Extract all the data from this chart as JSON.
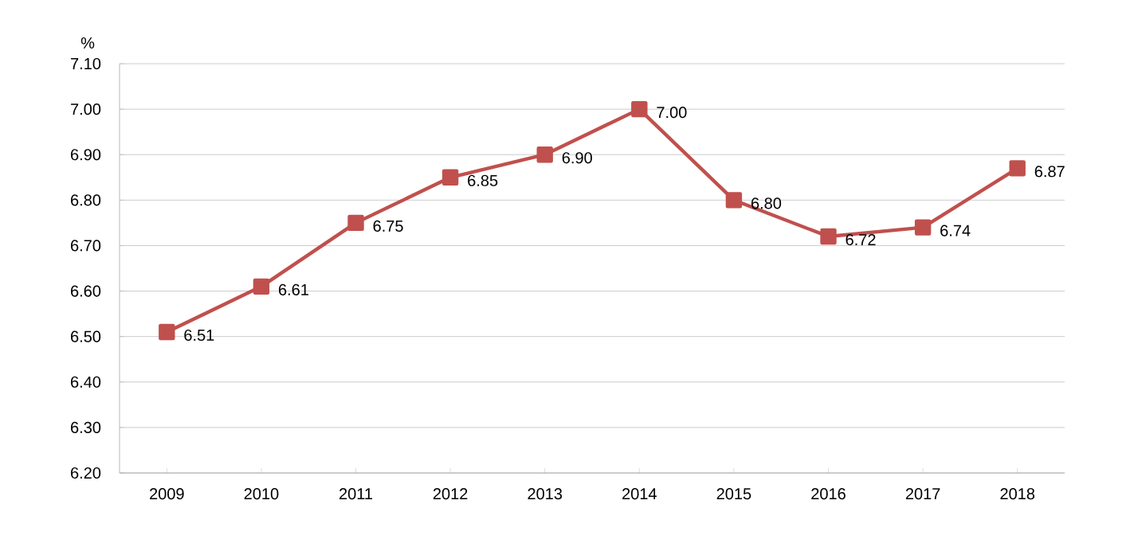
{
  "chart_data": {
    "type": "line",
    "ylabel": "%",
    "categories": [
      "2009",
      "2010",
      "2011",
      "2012",
      "2013",
      "2014",
      "2015",
      "2016",
      "2017",
      "2018"
    ],
    "series": [
      {
        "color": "#c0504d",
        "values": [
          6.51,
          6.61,
          6.75,
          6.85,
          6.9,
          7.0,
          6.8,
          6.72,
          6.74,
          6.87
        ]
      }
    ],
    "value_labels": [
      "6.51",
      "6.61",
      "6.75",
      "6.85",
      "6.90",
      "7.00",
      "6.80",
      "6.72",
      "6.74",
      "6.87"
    ],
    "ylim": [
      6.2,
      7.1
    ],
    "yticks": [
      {
        "value": 6.2,
        "label": "6.20"
      },
      {
        "value": 6.3,
        "label": "6.30"
      },
      {
        "value": 6.4,
        "label": "6.40"
      },
      {
        "value": 6.5,
        "label": "6.50"
      },
      {
        "value": 6.6,
        "label": "6.60"
      },
      {
        "value": 6.7,
        "label": "6.70"
      },
      {
        "value": 6.8,
        "label": "6.80"
      },
      {
        "value": 6.9,
        "label": "6.90"
      },
      {
        "value": 7.0,
        "label": "7.00"
      },
      {
        "value": 7.1,
        "label": "7.10"
      }
    ],
    "grid": "y",
    "marker": "square",
    "line_style": "solid"
  }
}
